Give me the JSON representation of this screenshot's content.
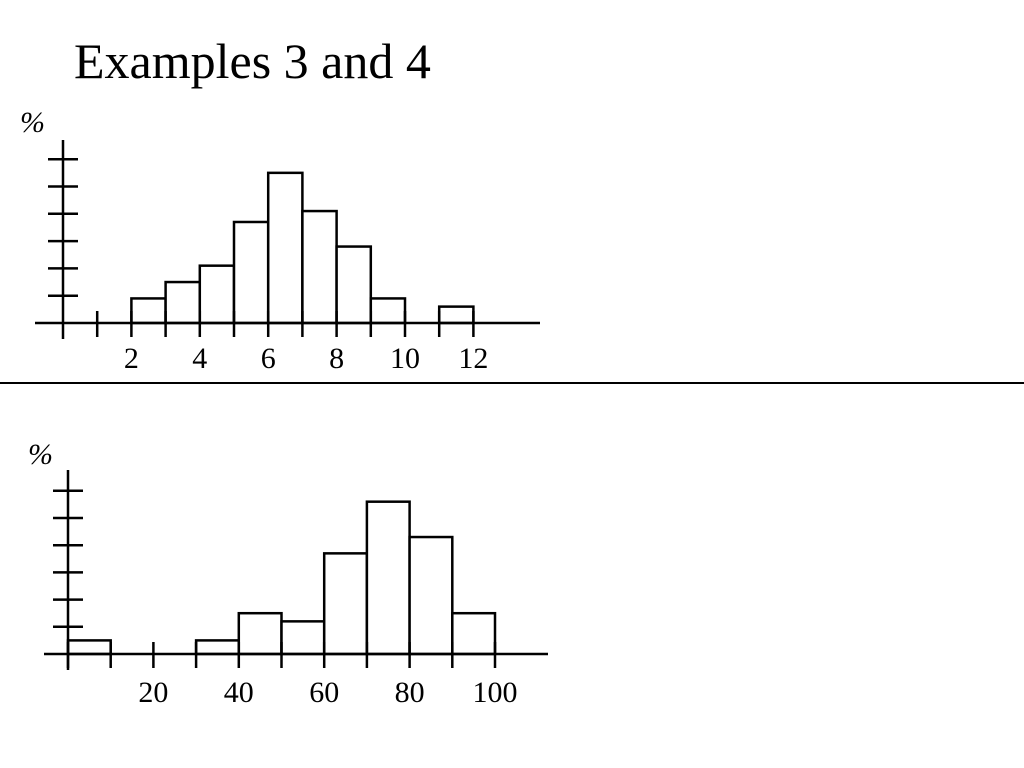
{
  "page": {
    "title": "Examples 3 and 4"
  },
  "chart_data": [
    {
      "type": "bar",
      "title": "",
      "ylabel": "%",
      "xlabel": "",
      "x_ticks": [
        2,
        4,
        6,
        8,
        10,
        12
      ],
      "bins": [
        {
          "x0": 2,
          "x1": 3,
          "value": 0.9
        },
        {
          "x0": 3,
          "x1": 4,
          "value": 1.5
        },
        {
          "x0": 4,
          "x1": 5,
          "value": 2.1
        },
        {
          "x0": 5,
          "x1": 6,
          "value": 3.7
        },
        {
          "x0": 6,
          "x1": 7,
          "value": 5.5
        },
        {
          "x0": 7,
          "x1": 8,
          "value": 4.1
        },
        {
          "x0": 8,
          "x1": 9,
          "value": 2.8
        },
        {
          "x0": 9,
          "x1": 10,
          "value": 0.9
        },
        {
          "x0": 11,
          "x1": 12,
          "value": 0.6
        }
      ],
      "ylim": [
        0,
        6
      ],
      "xlim": [
        0,
        14
      ],
      "grid": false
    },
    {
      "type": "bar",
      "title": "",
      "ylabel": "%",
      "xlabel": "",
      "x_ticks": [
        20,
        40,
        60,
        80,
        100
      ],
      "bins": [
        {
          "x0": 0,
          "x1": 10,
          "value": 0.5
        },
        {
          "x0": 30,
          "x1": 40,
          "value": 0.5
        },
        {
          "x0": 40,
          "x1": 50,
          "value": 1.5
        },
        {
          "x0": 50,
          "x1": 60,
          "value": 1.2
        },
        {
          "x0": 60,
          "x1": 70,
          "value": 3.7
        },
        {
          "x0": 70,
          "x1": 80,
          "value": 5.6
        },
        {
          "x0": 80,
          "x1": 90,
          "value": 4.3
        },
        {
          "x0": 90,
          "x1": 100,
          "value": 1.5
        }
      ],
      "ylim": [
        0,
        6
      ],
      "xlim": [
        0,
        115
      ],
      "grid": false
    }
  ]
}
